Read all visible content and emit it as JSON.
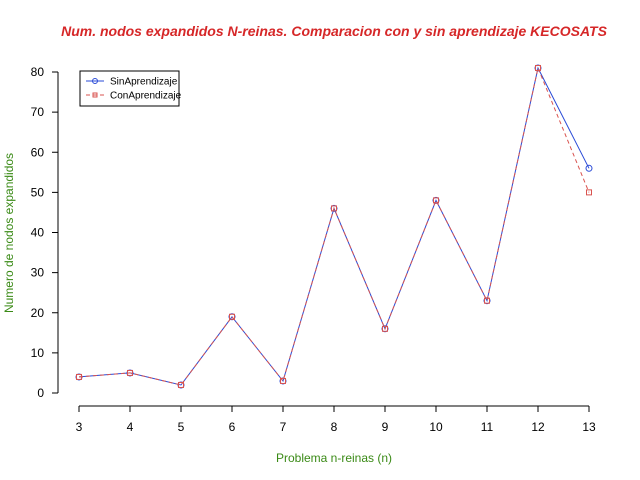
{
  "chart_data": {
    "type": "line",
    "title": "Num. nodos expandidos N-reinas. Comparacion con y sin aprendizaje KECOSATS",
    "xlabel": "Problema n-reinas (n)",
    "ylabel": "Numero de nodos expandidos",
    "x": [
      3,
      4,
      5,
      6,
      7,
      8,
      9,
      10,
      11,
      12,
      13
    ],
    "xlim": [
      3,
      13
    ],
    "ylim": [
      0,
      80
    ],
    "xticks": [
      "3",
      "4",
      "5",
      "6",
      "7",
      "8",
      "9",
      "10",
      "11",
      "12",
      "13"
    ],
    "yticks": [
      "0",
      "10",
      "20",
      "30",
      "40",
      "50",
      "60",
      "70",
      "80"
    ],
    "grid": false,
    "legend_position": "top-left",
    "series": [
      {
        "name": "SinAprendizaje",
        "values": [
          4,
          5,
          2,
          19,
          3,
          46,
          16,
          48,
          23,
          81,
          56
        ],
        "color": "#2a4bd7",
        "marker": "circle",
        "line_style": "solid"
      },
      {
        "name": "ConAprendizaje",
        "values": [
          4,
          5,
          2,
          19,
          3,
          46,
          16,
          48,
          23,
          81,
          50
        ],
        "color": "#d9534f",
        "marker": "square",
        "line_style": "dashed"
      }
    ],
    "colors": {
      "title": "#d62728",
      "axis_label": "#3a8a16"
    }
  }
}
